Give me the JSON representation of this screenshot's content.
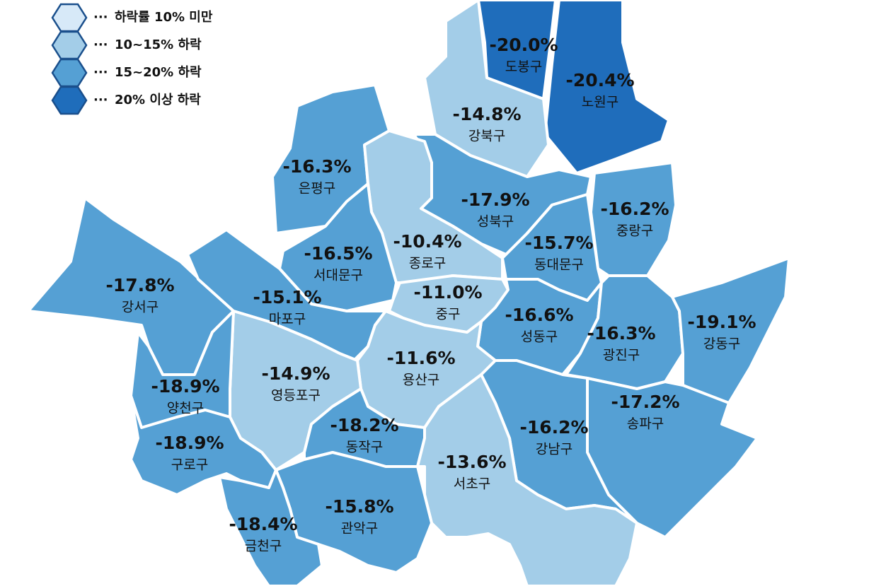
{
  "legend": {
    "leader": "···",
    "items": [
      {
        "label": "하락률 10% 미만",
        "color": "#d7e9f8"
      },
      {
        "label": "10~15% 하락",
        "color": "#a3cde8"
      },
      {
        "label": "15~20% 하락",
        "color": "#55a0d4"
      },
      {
        "label": "20% 이상 하락",
        "color": "#1f6dbb"
      }
    ]
  },
  "districts": [
    {
      "name": "도봉구",
      "value": -20.0,
      "value_label": "-20.0%",
      "color": "#1f6dbb"
    },
    {
      "name": "노원구",
      "value": -20.4,
      "value_label": "-20.4%",
      "color": "#1f6dbb"
    },
    {
      "name": "강북구",
      "value": -14.8,
      "value_label": "-14.8%",
      "color": "#a3cde8"
    },
    {
      "name": "은평구",
      "value": -16.3,
      "value_label": "-16.3%",
      "color": "#55a0d4"
    },
    {
      "name": "성북구",
      "value": -17.9,
      "value_label": "-17.9%",
      "color": "#55a0d4"
    },
    {
      "name": "중랑구",
      "value": -16.2,
      "value_label": "-16.2%",
      "color": "#55a0d4"
    },
    {
      "name": "종로구",
      "value": -10.4,
      "value_label": "-10.4%",
      "color": "#a3cde8"
    },
    {
      "name": "서대문구",
      "value": -16.5,
      "value_label": "-16.5%",
      "color": "#55a0d4"
    },
    {
      "name": "동대문구",
      "value": -15.7,
      "value_label": "-15.7%",
      "color": "#55a0d4"
    },
    {
      "name": "강서구",
      "value": -17.8,
      "value_label": "-17.8%",
      "color": "#55a0d4"
    },
    {
      "name": "마포구",
      "value": -15.1,
      "value_label": "-15.1%",
      "color": "#55a0d4"
    },
    {
      "name": "중구",
      "value": -11.0,
      "value_label": "-11.0%",
      "color": "#a3cde8"
    },
    {
      "name": "성동구",
      "value": -16.6,
      "value_label": "-16.6%",
      "color": "#55a0d4"
    },
    {
      "name": "광진구",
      "value": -16.3,
      "value_label": "-16.3%",
      "color": "#55a0d4"
    },
    {
      "name": "강동구",
      "value": -19.1,
      "value_label": "-19.1%",
      "color": "#55a0d4"
    },
    {
      "name": "용산구",
      "value": -11.6,
      "value_label": "-11.6%",
      "color": "#a3cde8"
    },
    {
      "name": "영등포구",
      "value": -14.9,
      "value_label": "-14.9%",
      "color": "#a3cde8"
    },
    {
      "name": "양천구",
      "value": -18.9,
      "value_label": "-18.9%",
      "color": "#55a0d4"
    },
    {
      "name": "송파구",
      "value": -17.2,
      "value_label": "-17.2%",
      "color": "#55a0d4"
    },
    {
      "name": "강남구",
      "value": -16.2,
      "value_label": "-16.2%",
      "color": "#55a0d4"
    },
    {
      "name": "동작구",
      "value": -18.2,
      "value_label": "-18.2%",
      "color": "#55a0d4"
    },
    {
      "name": "구로구",
      "value": -18.9,
      "value_label": "-18.9%",
      "color": "#55a0d4"
    },
    {
      "name": "서초구",
      "value": -13.6,
      "value_label": "-13.6%",
      "color": "#a3cde8"
    },
    {
      "name": "관악구",
      "value": -15.8,
      "value_label": "-15.8%",
      "color": "#55a0d4"
    },
    {
      "name": "금천구",
      "value": -18.4,
      "value_label": "-18.4%",
      "color": "#55a0d4"
    }
  ]
}
